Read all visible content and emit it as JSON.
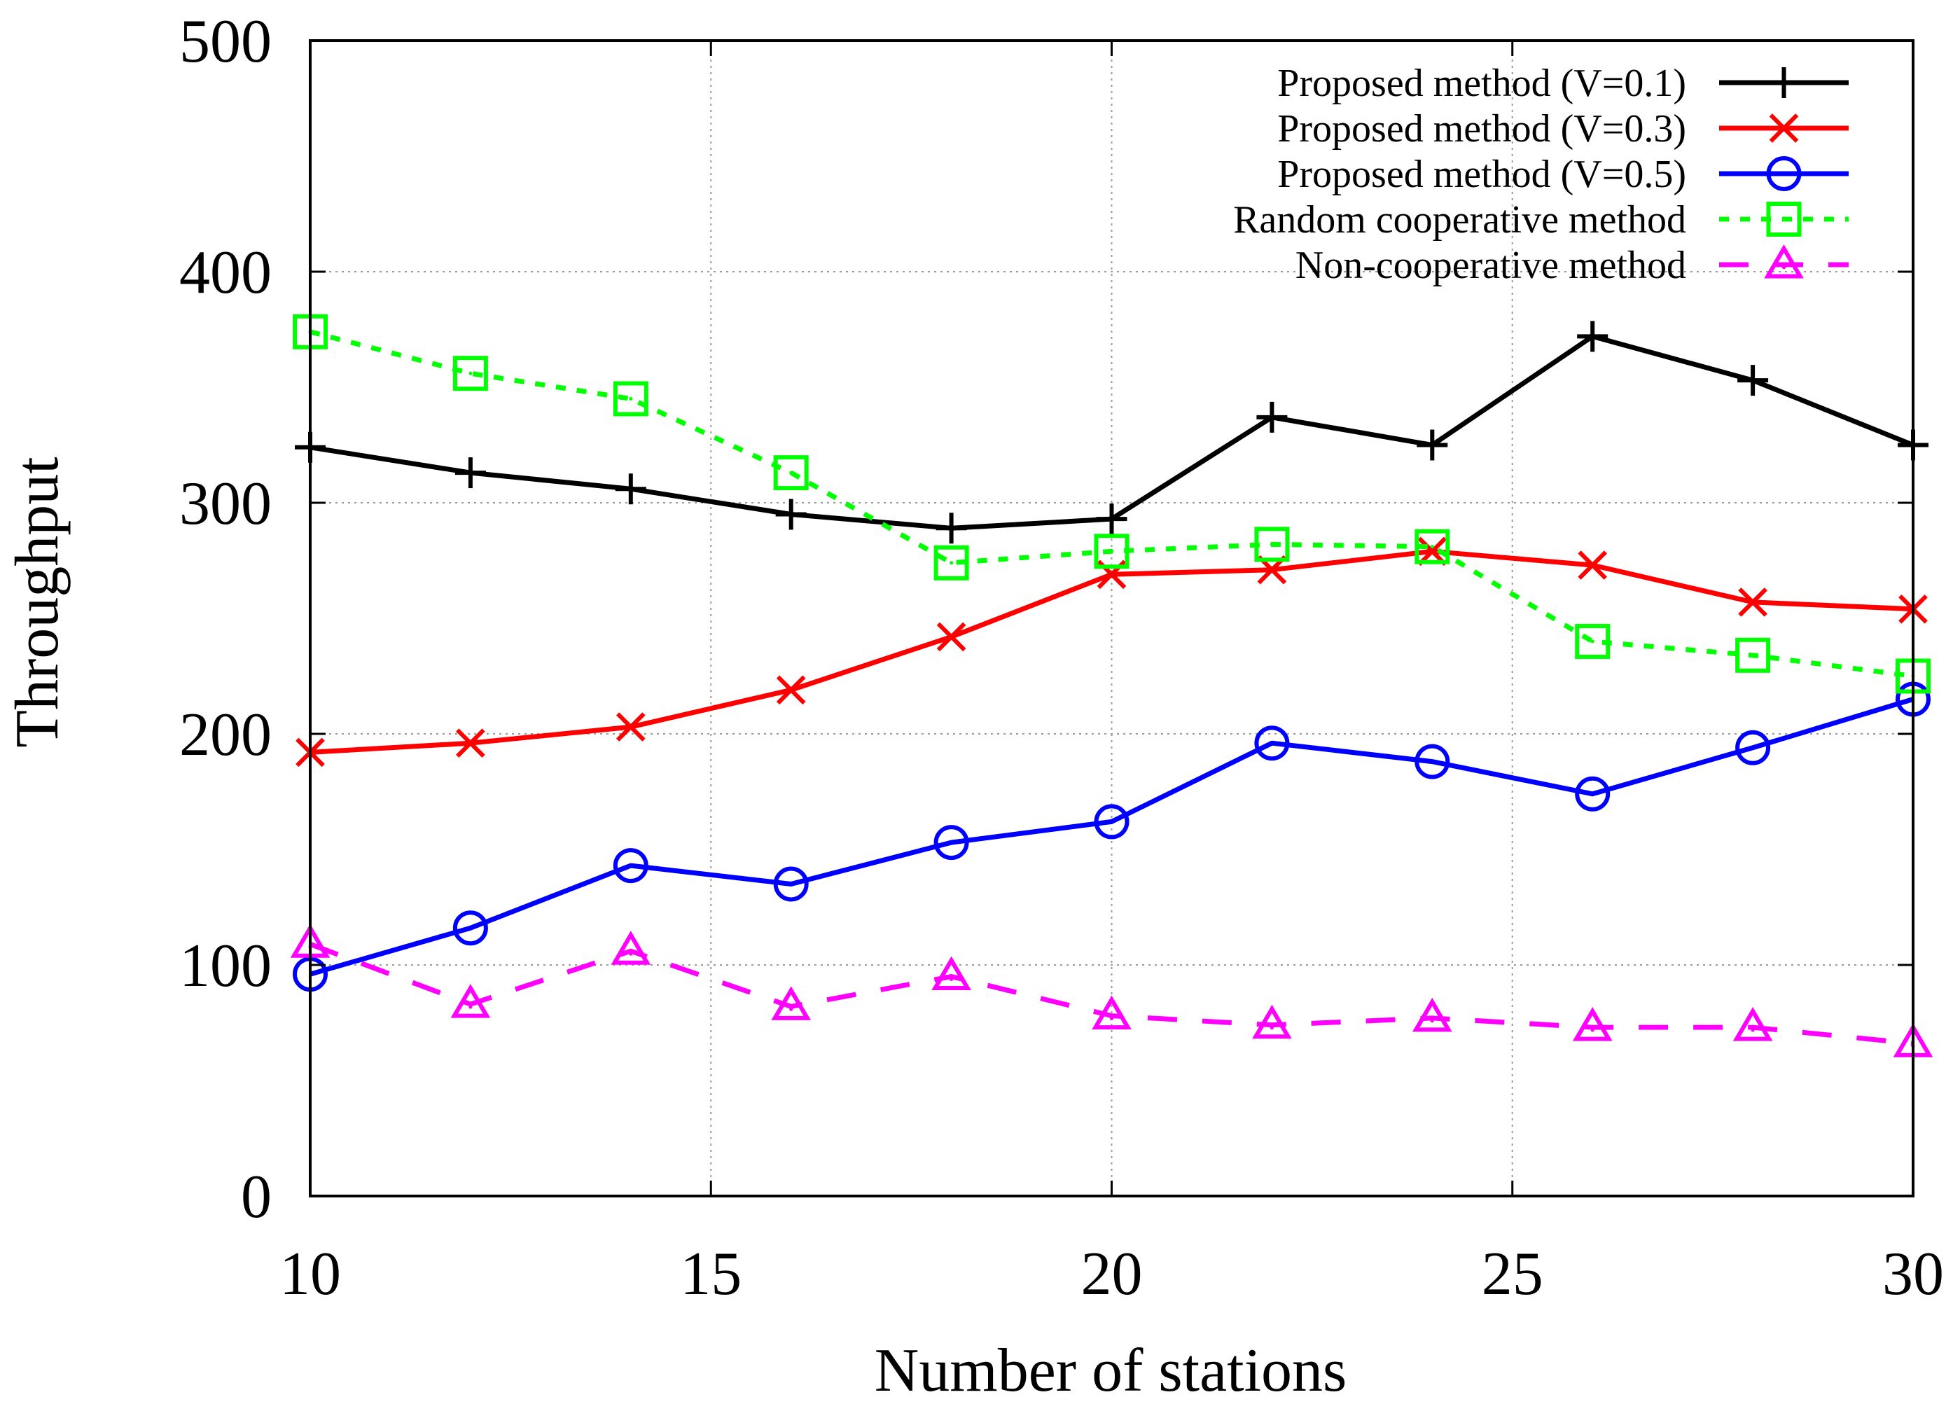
{
  "chart_data": {
    "type": "line",
    "title": "",
    "xlabel": "Number of stations",
    "ylabel": "Throughput",
    "xlim": [
      10,
      30
    ],
    "ylim": [
      0,
      500
    ],
    "xticks": [
      10,
      15,
      20,
      25,
      30
    ],
    "yticks": [
      0,
      100,
      200,
      300,
      400,
      500
    ],
    "grid": true,
    "legend_position": "top-right",
    "x": [
      10,
      12,
      14,
      16,
      18,
      20,
      22,
      24,
      26,
      28,
      30
    ],
    "series": [
      {
        "name": "Proposed method (V=0.1)",
        "color": "#000000",
        "marker": "plus",
        "dash": "solid",
        "values": [
          324,
          313,
          306,
          295,
          289,
          293,
          337,
          325,
          372,
          353,
          325
        ]
      },
      {
        "name": "Proposed method (V=0.3)",
        "color": "#ff0000",
        "marker": "cross",
        "dash": "solid",
        "values": [
          192,
          196,
          203,
          219,
          242,
          269,
          271,
          279,
          273,
          257,
          254
        ]
      },
      {
        "name": "Proposed method (V=0.5)",
        "color": "#0000ff",
        "marker": "circle",
        "dash": "solid",
        "values": [
          96,
          116,
          143,
          135,
          153,
          162,
          196,
          188,
          174,
          194,
          215
        ]
      },
      {
        "name": "Random cooperative method",
        "color": "#00ff00",
        "marker": "square",
        "dash": "dotted",
        "values": [
          374,
          356,
          345,
          313,
          274,
          279,
          282,
          281,
          240,
          234,
          225
        ]
      },
      {
        "name": "Non-cooperative method",
        "color": "#ff00ff",
        "marker": "triangle",
        "dash": "dashed",
        "values": [
          109,
          83,
          106,
          82,
          95,
          78,
          74,
          77,
          73,
          73,
          66
        ]
      }
    ]
  }
}
